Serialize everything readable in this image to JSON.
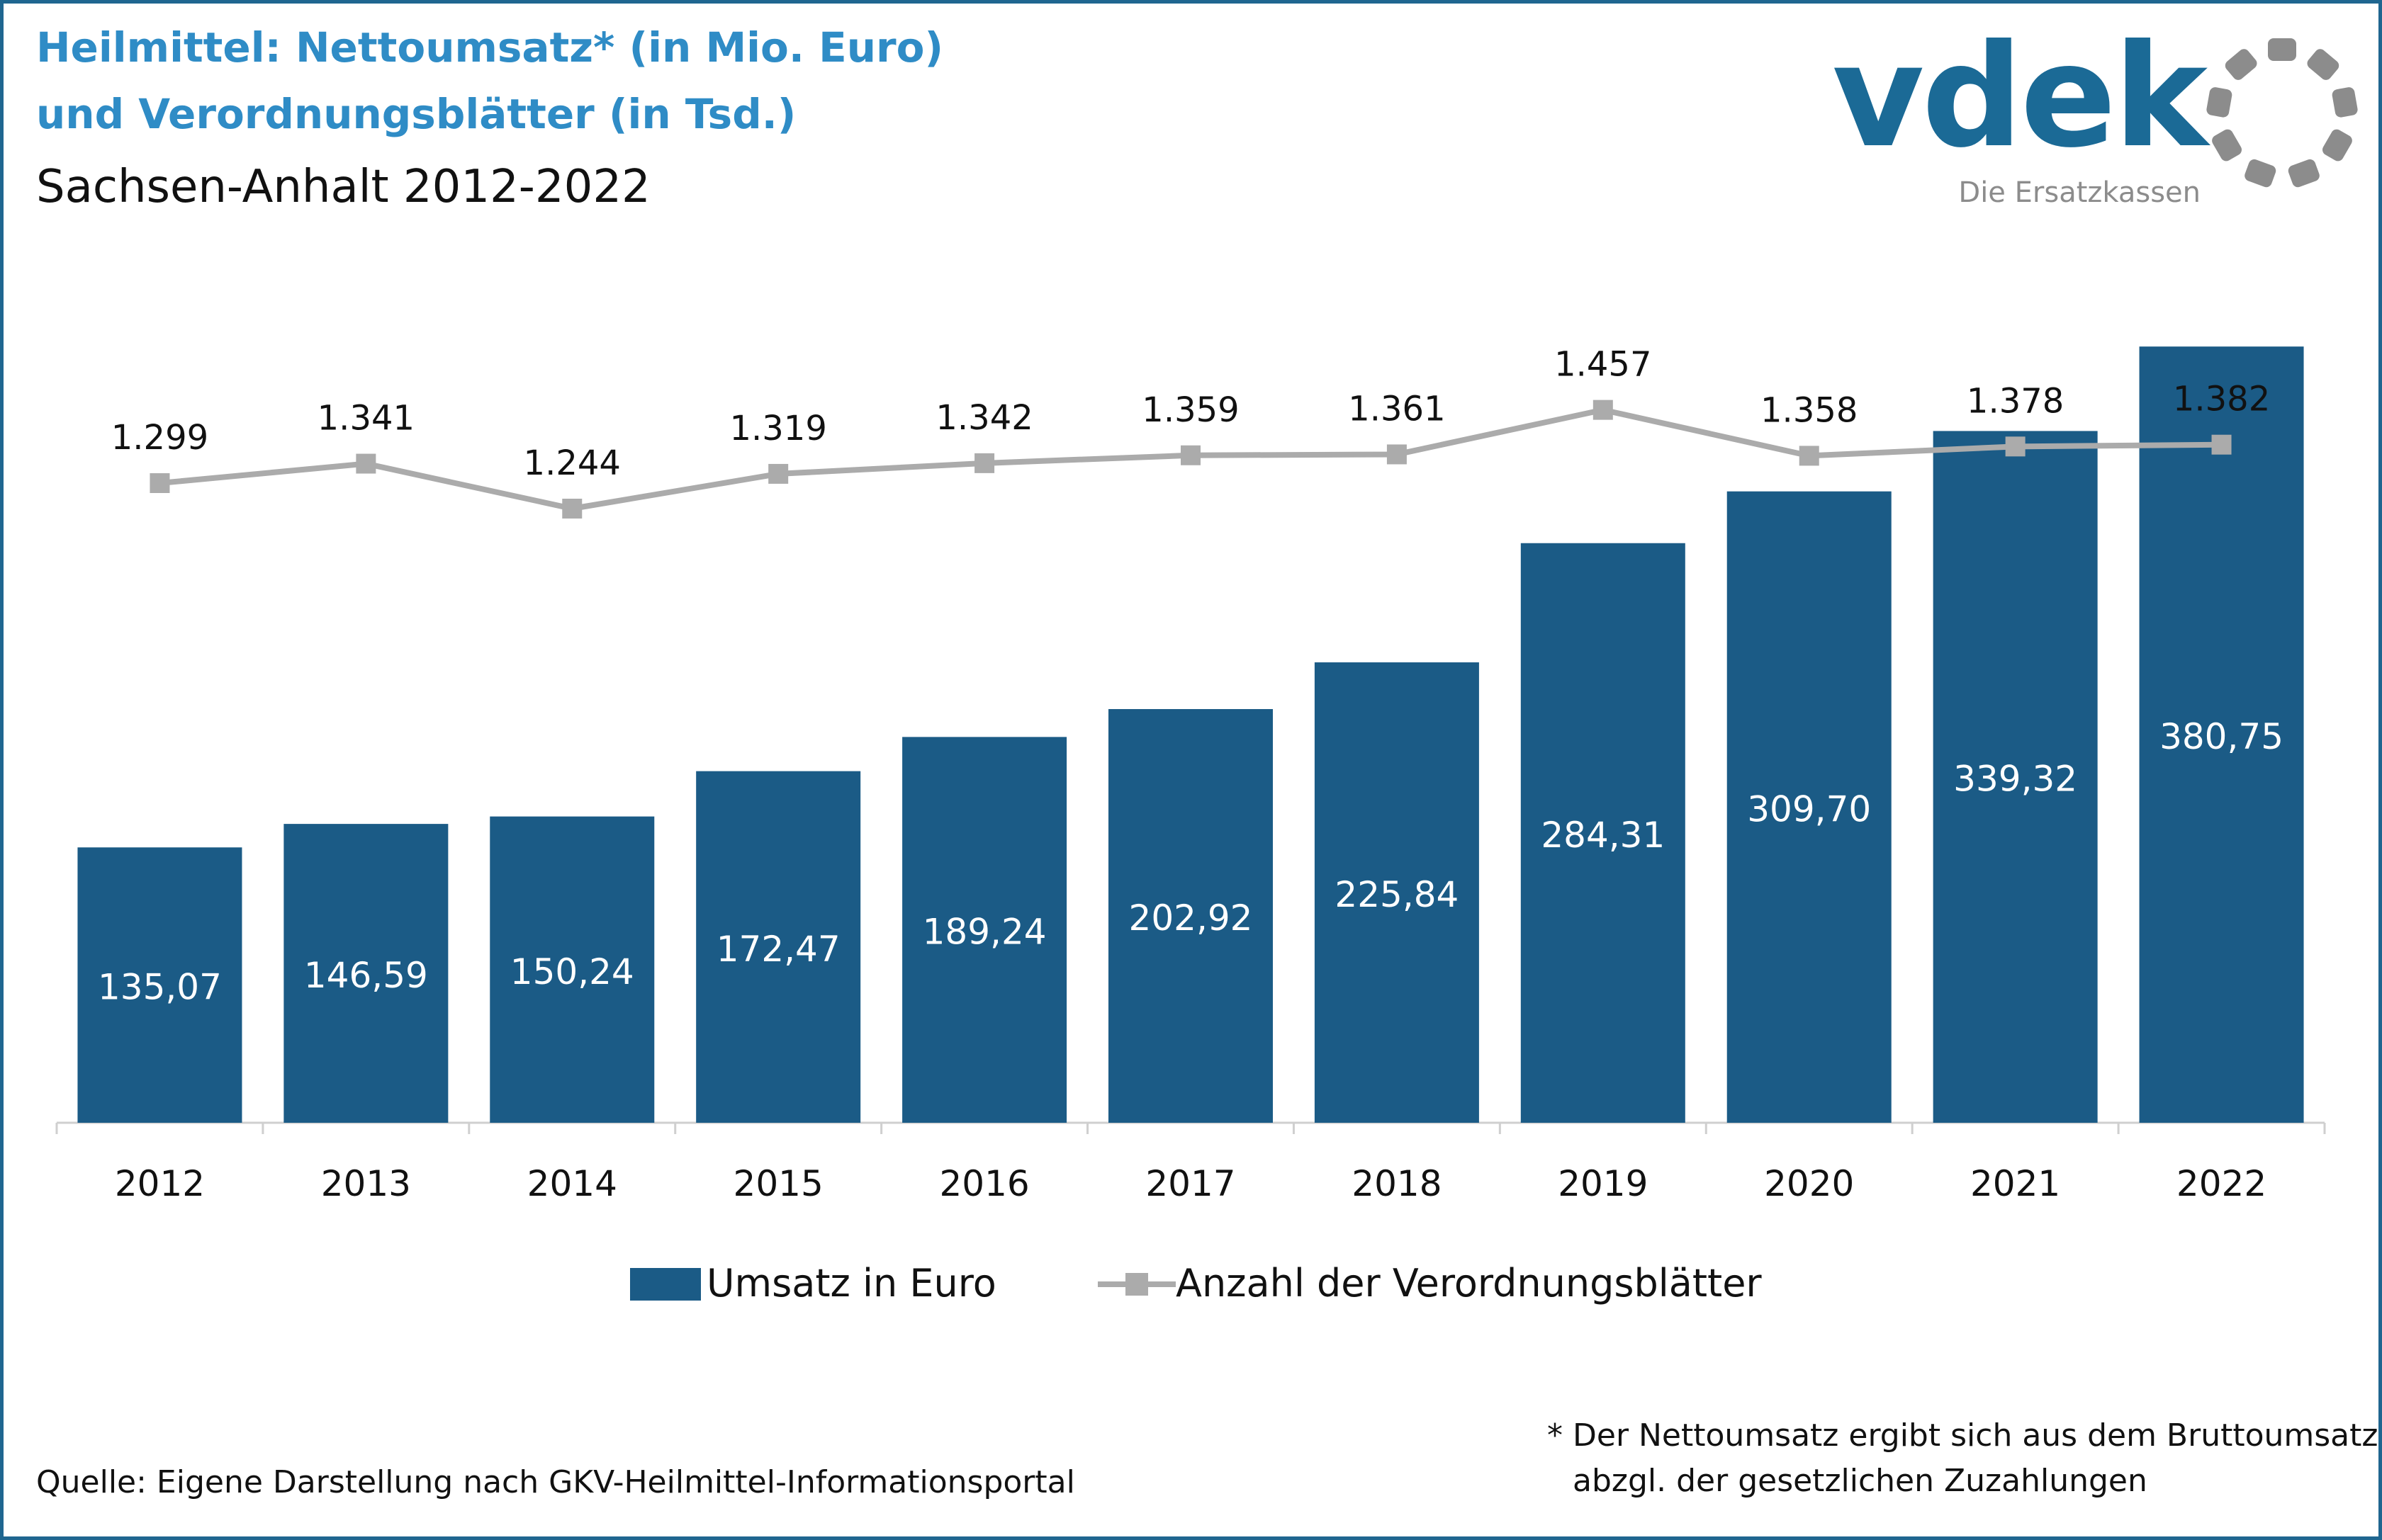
{
  "header": {
    "title_line1": "Heilmittel: Nettoumsatz* (in Mio. Euro)",
    "title_line2": "und Verordnungsblätter (in Tsd.)",
    "subtitle": "Sachsen-Anhalt 2012-2022"
  },
  "logo": {
    "wordmark": "vdek",
    "tagline": "Die Ersatzkassen",
    "icon": "ring-of-segments-icon",
    "colors": {
      "wordmark": "#1b6a96",
      "ring": "#8c8c8c"
    }
  },
  "chart_data": {
    "type": "bar",
    "categories": [
      "2012",
      "2013",
      "2014",
      "2015",
      "2016",
      "2017",
      "2018",
      "2019",
      "2020",
      "2021",
      "2022"
    ],
    "series": [
      {
        "name": "Umsatz in Euro",
        "type": "bar",
        "values": [
          135.07,
          146.59,
          150.24,
          172.47,
          189.24,
          202.92,
          225.84,
          284.31,
          309.7,
          339.32,
          380.75
        ],
        "labels": [
          "135,07",
          "146,59",
          "150,24",
          "172,47",
          "189,24",
          "202,92",
          "225,84",
          "284,31",
          "309,70",
          "339,32",
          "380,75"
        ],
        "color": "#1b5b86"
      },
      {
        "name": "Anzahl der Verordnungsblätter",
        "type": "line",
        "values": [
          1299,
          1341,
          1244,
          1319,
          1342,
          1359,
          1361,
          1457,
          1358,
          1378,
          1382
        ],
        "labels": [
          "1.299",
          "1.341",
          "1.244",
          "1.319",
          "1.342",
          "1.359",
          "1.361",
          "1.457",
          "1.358",
          "1.378",
          "1.382"
        ],
        "color": "#ababab"
      }
    ],
    "legend_position": "bottom",
    "grid": false
  },
  "source": "Quelle: Eigene Darstellung nach GKV-Heilmittel-Informationsportal",
  "footnote": {
    "line1": "* Der Nettoumsatz ergibt sich aus dem Bruttoumsatz",
    "line2": "abzgl. der gesetzlichen Zuzahlungen"
  }
}
